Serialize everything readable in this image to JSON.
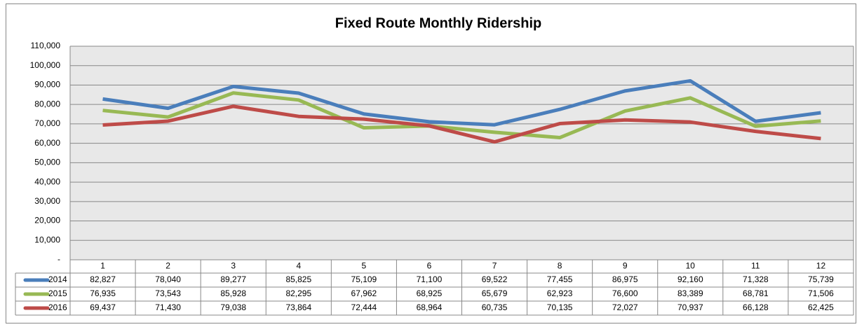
{
  "chart_data": {
    "type": "line",
    "title": "Fixed Route Monthly Ridership",
    "categories": [
      "1",
      "2",
      "3",
      "4",
      "5",
      "6",
      "7",
      "8",
      "9",
      "10",
      "11",
      "12"
    ],
    "series": [
      {
        "name": "2014",
        "color": "#4a7ebb",
        "values": [
          82827,
          78040,
          89277,
          85825,
          75109,
          71100,
          69522,
          77455,
          86975,
          92160,
          71328,
          75739
        ],
        "value_labels": [
          "82,827",
          "78,040",
          "89,277",
          "85,825",
          "75,109",
          "71,100",
          "69,522",
          "77,455",
          "86,975",
          "92,160",
          "71,328",
          "75,739"
        ]
      },
      {
        "name": "2015",
        "color": "#98b954",
        "values": [
          76935,
          73543,
          85928,
          82295,
          67962,
          68925,
          65679,
          62923,
          76600,
          83389,
          68781,
          71506
        ],
        "value_labels": [
          "76,935",
          "73,543",
          "85,928",
          "82,295",
          "67,962",
          "68,925",
          "65,679",
          "62,923",
          "76,600",
          "83,389",
          "68,781",
          "71,506"
        ]
      },
      {
        "name": "2016",
        "color": "#be4b48",
        "values": [
          69437,
          71430,
          79038,
          73864,
          72444,
          68964,
          60735,
          70135,
          72027,
          70937,
          66128,
          62425
        ],
        "value_labels": [
          "69,437",
          "71,430",
          "79,038",
          "73,864",
          "72,444",
          "68,964",
          "60,735",
          "70,135",
          "72,027",
          "70,937",
          "66,128",
          "62,425"
        ]
      }
    ],
    "ylim": [
      0,
      110000
    ],
    "yticks": [
      {
        "value": 0,
        "label": "-"
      },
      {
        "value": 10000,
        "label": "10,000"
      },
      {
        "value": 20000,
        "label": "20,000"
      },
      {
        "value": 30000,
        "label": "30,000"
      },
      {
        "value": 40000,
        "label": "40,000"
      },
      {
        "value": 50000,
        "label": "50,000"
      },
      {
        "value": 60000,
        "label": "60,000"
      },
      {
        "value": 70000,
        "label": "70,000"
      },
      {
        "value": 80000,
        "label": "80,000"
      },
      {
        "value": 90000,
        "label": "90,000"
      },
      {
        "value": 100000,
        "label": "100,000"
      },
      {
        "value": 110000,
        "label": "110,000"
      }
    ],
    "grid": true
  }
}
